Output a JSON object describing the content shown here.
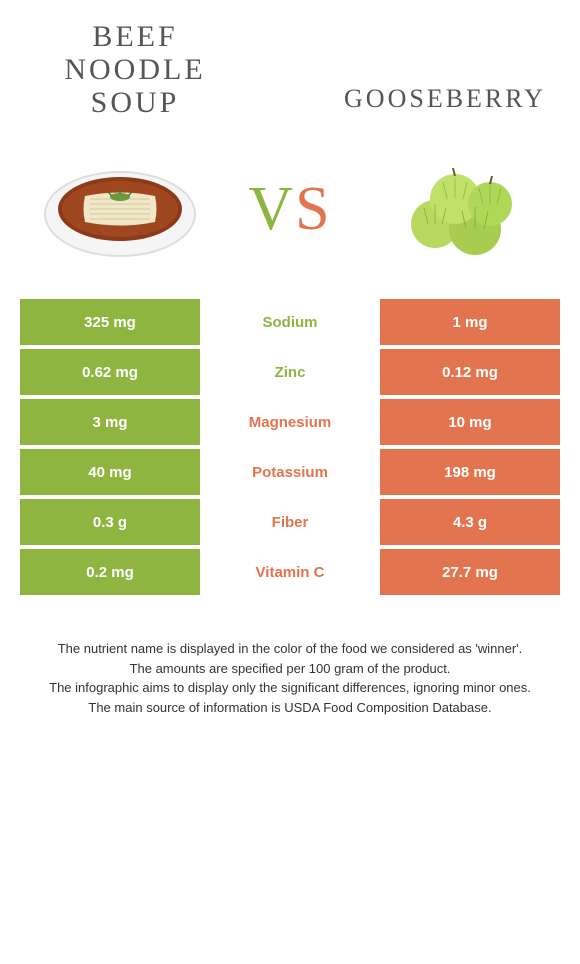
{
  "colors": {
    "left": "#8eb53f",
    "right": "#e2754f",
    "text": "#555555"
  },
  "header": {
    "left_line1": "BEEF",
    "left_line2": "NOODLE",
    "left_line3": "SOUP",
    "right": "GOOSEBERRY",
    "vs_v": "V",
    "vs_s": "S"
  },
  "rows": [
    {
      "left": "325 mg",
      "label": "Sodium",
      "right": "1 mg",
      "winner": "left"
    },
    {
      "left": "0.62 mg",
      "label": "Zinc",
      "right": "0.12 mg",
      "winner": "left"
    },
    {
      "left": "3 mg",
      "label": "Magnesium",
      "right": "10 mg",
      "winner": "right"
    },
    {
      "left": "40 mg",
      "label": "Potassium",
      "right": "198 mg",
      "winner": "right"
    },
    {
      "left": "0.3 g",
      "label": "Fiber",
      "right": "4.3 g",
      "winner": "right"
    },
    {
      "left": "0.2 mg",
      "label": "Vitamin C",
      "right": "27.7 mg",
      "winner": "right"
    }
  ],
  "footer": {
    "line1": "The nutrient name is displayed in the color of the food we considered as 'winner'.",
    "line2": "The amounts are specified per 100 gram of the product.",
    "line3": "The infographic aims to display only the significant differences, ignoring minor ones.",
    "line4": "The main source of information is USDA Food Composition Database."
  }
}
